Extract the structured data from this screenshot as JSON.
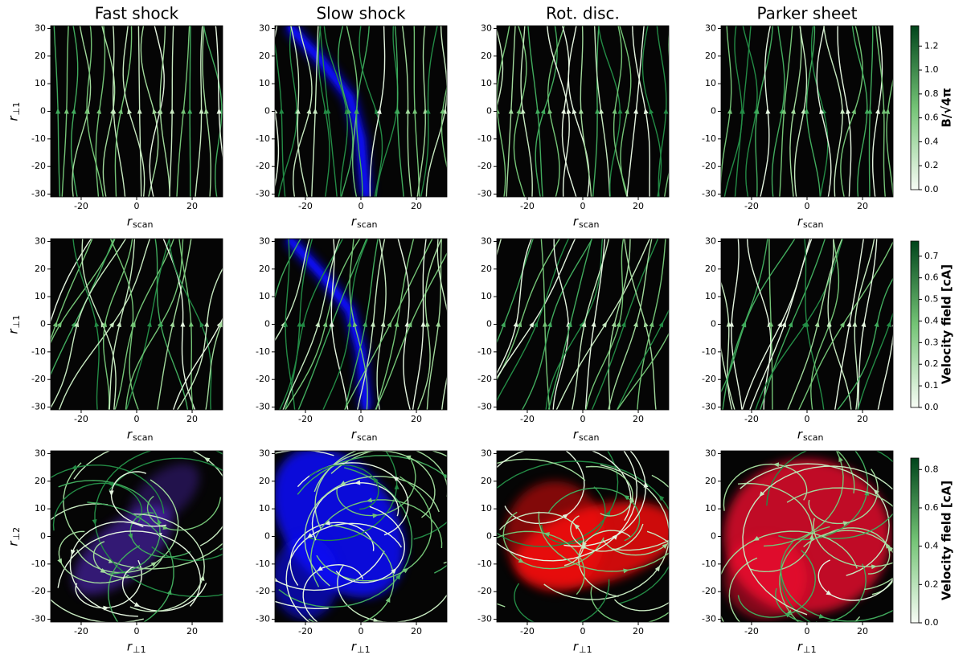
{
  "chart_data": [
    {
      "type": "streamplot",
      "title": "Fast shock",
      "xlabel": "r",
      "xlabel_subscript": "scan",
      "ylabel": "r",
      "ylabel_subscript": "⊥1",
      "xlim": [
        -31,
        31
      ],
      "ylim": [
        -31,
        31
      ],
      "xticks": [
        -20,
        0,
        20
      ],
      "yticks": [
        -30,
        -20,
        -10,
        0,
        10,
        20,
        30
      ],
      "overlay_color": "#5a2bd0"
    },
    {
      "type": "streamplot",
      "title": "Slow shock",
      "xlabel": "r",
      "xlabel_subscript": "scan",
      "xlim": [
        -31,
        31
      ],
      "ylim": [
        -31,
        31
      ],
      "xticks": [
        -20,
        0,
        20
      ],
      "yticks": [
        -30,
        -20,
        -10,
        0,
        10,
        20,
        30
      ],
      "overlay_color": "#1010ff"
    },
    {
      "type": "streamplot",
      "title": "Rot. disc.",
      "xlabel": "r",
      "xlabel_subscript": "scan",
      "xlim": [
        -31,
        31
      ],
      "ylim": [
        -31,
        31
      ],
      "xticks": [
        -20,
        0,
        20
      ],
      "yticks": [
        -30,
        -20,
        -10,
        0,
        10,
        20,
        30
      ],
      "overlay_color": "#ff1010"
    },
    {
      "type": "streamplot",
      "title": "Parker sheet",
      "xlabel": "r",
      "xlabel_subscript": "scan",
      "xlim": [
        -31,
        31
      ],
      "ylim": [
        -31,
        31
      ],
      "xticks": [
        -20,
        0,
        20
      ],
      "yticks": [
        -30,
        -20,
        -10,
        0,
        10,
        20,
        30
      ],
      "overlay_color": "#ff1030"
    },
    {
      "type": "streamplot",
      "xlabel": "r",
      "xlabel_subscript": "scan",
      "ylabel": "r",
      "ylabel_subscript": "⊥1",
      "xlim": [
        -31,
        31
      ],
      "ylim": [
        -31,
        31
      ],
      "xticks": [
        -20,
        0,
        20
      ],
      "yticks": [
        -30,
        -20,
        -10,
        0,
        10,
        20,
        30
      ],
      "overlay_color": "#5a2bd0"
    },
    {
      "type": "streamplot",
      "xlabel": "r",
      "xlabel_subscript": "scan",
      "xlim": [
        -31,
        31
      ],
      "ylim": [
        -31,
        31
      ],
      "xticks": [
        -20,
        0,
        20
      ],
      "yticks": [
        -30,
        -20,
        -10,
        0,
        10,
        20,
        30
      ],
      "overlay_color": "#1010ff"
    },
    {
      "type": "streamplot",
      "xlabel": "r",
      "xlabel_subscript": "scan",
      "xlim": [
        -31,
        31
      ],
      "ylim": [
        -31,
        31
      ],
      "xticks": [
        -20,
        0,
        20
      ],
      "yticks": [
        -30,
        -20,
        -10,
        0,
        10,
        20,
        30
      ],
      "overlay_color": "#ff1010"
    },
    {
      "type": "streamplot",
      "xlabel": "r",
      "xlabel_subscript": "scan",
      "xlim": [
        -31,
        31
      ],
      "ylim": [
        -31,
        31
      ],
      "xticks": [
        -20,
        0,
        20
      ],
      "yticks": [
        -30,
        -20,
        -10,
        0,
        10,
        20,
        30
      ],
      "overlay_color": "#ff1030"
    },
    {
      "type": "streamplot",
      "xlabel": "r",
      "xlabel_subscript": "⊥1",
      "ylabel": "r",
      "ylabel_subscript": "⊥2",
      "xlim": [
        -31,
        31
      ],
      "ylim": [
        -31,
        31
      ],
      "xticks": [
        -20,
        0,
        20
      ],
      "yticks": [
        -30,
        -20,
        -10,
        0,
        10,
        20,
        30
      ],
      "overlay_color": "#5a2bd0"
    },
    {
      "type": "streamplot",
      "xlabel": "r",
      "xlabel_subscript": "⊥1",
      "xlim": [
        -31,
        31
      ],
      "ylim": [
        -31,
        31
      ],
      "xticks": [
        -20,
        0,
        20
      ],
      "yticks": [
        -30,
        -20,
        -10,
        0,
        10,
        20,
        30
      ],
      "overlay_color": "#1010ff"
    },
    {
      "type": "streamplot",
      "xlabel": "r",
      "xlabel_subscript": "⊥1",
      "xlim": [
        -31,
        31
      ],
      "ylim": [
        -31,
        31
      ],
      "xticks": [
        -20,
        0,
        20
      ],
      "yticks": [
        -30,
        -20,
        -10,
        0,
        10,
        20,
        30
      ],
      "overlay_color": "#ff1010"
    },
    {
      "type": "streamplot",
      "xlabel": "r",
      "xlabel_subscript": "⊥1",
      "xlim": [
        -31,
        31
      ],
      "ylim": [
        -31,
        31
      ],
      "xticks": [
        -20,
        0,
        20
      ],
      "yticks": [
        -30,
        -20,
        -10,
        0,
        10,
        20,
        30
      ],
      "overlay_color": "#ff1030"
    },
    {
      "type": "colorbar",
      "label": "B/√4π",
      "colormap": [
        "#f7fcf5",
        "#00441b"
      ],
      "ylim": [
        0,
        1.37
      ],
      "yticks": [
        {
          "value": 0,
          "label": "0.0"
        },
        0.2,
        0.4,
        0.6,
        0.8,
        {
          "value": 1,
          "label": "1.0"
        },
        1.2
      ]
    },
    {
      "type": "colorbar",
      "label": "Velocity field [cA]",
      "colormap": [
        "#f7fcf5",
        "#00441b"
      ],
      "ylim": [
        0,
        0.77
      ],
      "yticks": [
        {
          "value": 0,
          "label": "0.0"
        },
        0.1,
        0.2,
        0.3,
        0.4,
        0.5,
        0.6,
        0.7
      ]
    },
    {
      "type": "colorbar",
      "label": "Velocity field [cA]",
      "colormap": [
        "#f7fcf5",
        "#00441b"
      ],
      "ylim": [
        0,
        0.86
      ],
      "yticks": [
        {
          "value": 0,
          "label": "0.0"
        },
        0.2,
        0.4,
        0.6,
        0.8
      ]
    }
  ]
}
